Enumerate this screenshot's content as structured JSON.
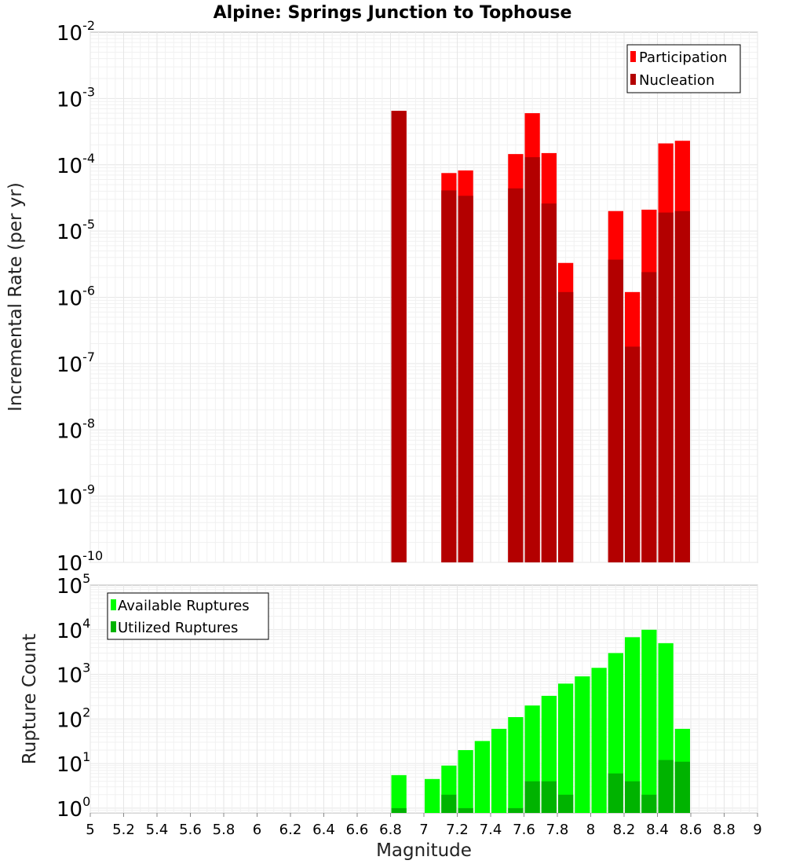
{
  "chart_data": [
    {
      "type": "bar",
      "title": "Alpine: Springs Junction to Tophouse",
      "ylabel": "Incremental Rate (per yr)",
      "xlabel": "",
      "yscale": "log",
      "ylim": [
        1e-10,
        0.01
      ],
      "xlim": [
        5,
        9
      ],
      "bin_width": 0.1,
      "grid": true,
      "legend_position": "top-right",
      "ytick_exponents": [
        "-2",
        "-3",
        "-4",
        "-5",
        "-6",
        "-7",
        "-8",
        "-9",
        "-10"
      ],
      "tick_base": "10",
      "x": [
        6.85,
        7.15,
        7.25,
        7.55,
        7.65,
        7.75,
        7.85,
        8.15,
        8.25,
        8.35,
        8.45,
        8.55
      ],
      "series": [
        {
          "name": "Participation",
          "color": "#ff0000",
          "values": [
            0.00065,
            7.5e-05,
            8.2e-05,
            0.000145,
            0.0006,
            0.00015,
            3.3e-06,
            2e-05,
            1.2e-06,
            2.1e-05,
            0.00021,
            0.00023
          ]
        },
        {
          "name": "Nucleation",
          "color": "#b30000",
          "values": [
            0.00065,
            4.1e-05,
            3.4e-05,
            4.4e-05,
            0.00013,
            2.6e-05,
            1.2e-06,
            3.7e-06,
            1.8e-07,
            2.4e-06,
            1.9e-05,
            2e-05
          ]
        }
      ]
    },
    {
      "type": "bar",
      "title": "",
      "ylabel": "Rupture Count",
      "xlabel": "Magnitude",
      "yscale": "log",
      "ylim": [
        0.78,
        100000
      ],
      "xlim": [
        5,
        9
      ],
      "bin_width": 0.1,
      "grid": true,
      "legend_position": "top-left",
      "ytick_exponents": [
        "5",
        "4",
        "3",
        "2",
        "1",
        "0"
      ],
      "tick_base": "10",
      "xticks": [
        "5",
        "5.2",
        "5.4",
        "5.6",
        "5.8",
        "6",
        "6.2",
        "6.4",
        "6.6",
        "6.8",
        "7",
        "7.2",
        "7.4",
        "7.6",
        "7.8",
        "8",
        "8.2",
        "8.4",
        "8.6",
        "8.8",
        "9"
      ],
      "x": [
        6.85,
        7.05,
        7.15,
        7.25,
        7.35,
        7.45,
        7.55,
        7.65,
        7.75,
        7.85,
        7.95,
        8.05,
        8.15,
        8.25,
        8.35,
        8.45,
        8.55
      ],
      "series": [
        {
          "name": "Available Ruptures",
          "color": "#00ff00",
          "values": [
            5.5,
            4.5,
            9,
            20,
            32,
            60,
            110,
            200,
            330,
            620,
            900,
            1400,
            3000,
            6800,
            10000,
            5000,
            60
          ]
        },
        {
          "name": "Utilized Ruptures",
          "color": "#00b300",
          "values": [
            1,
            0,
            2,
            1,
            0,
            0,
            1,
            4,
            4,
            2,
            0,
            0,
            6,
            4,
            2,
            12,
            11
          ]
        }
      ]
    }
  ]
}
